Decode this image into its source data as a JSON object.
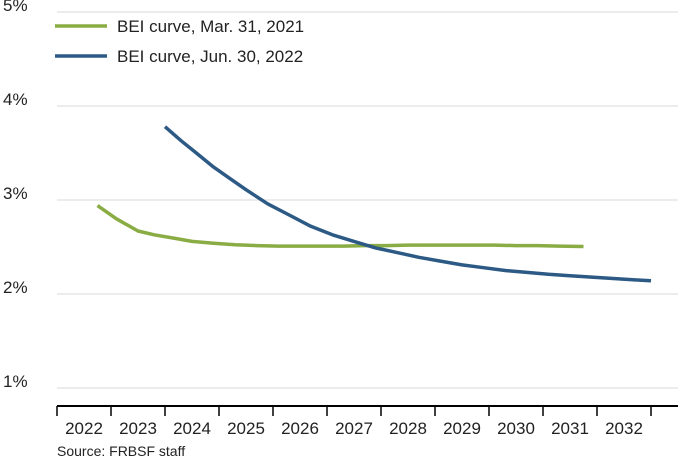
{
  "chart_data": {
    "type": "line",
    "ylim": [
      1,
      5
    ],
    "yticks": [
      1,
      2,
      3,
      4,
      5
    ],
    "ytick_labels": [
      "1%",
      "2%",
      "3%",
      "4%",
      "5%"
    ],
    "xlim": [
      2021.5,
      2033.0
    ],
    "xticks": [
      2022,
      2023,
      2024,
      2025,
      2026,
      2027,
      2028,
      2029,
      2030,
      2031,
      2032
    ],
    "xtick_labels": [
      "2022",
      "2023",
      "2024",
      "2025",
      "2026",
      "2027",
      "2028",
      "2029",
      "2030",
      "2031",
      "2032"
    ],
    "grid": "horizontal",
    "legend_position": "top-left",
    "series": [
      {
        "name": "BEI curve, Mar. 31, 2021",
        "color": "#8aac44",
        "x": [
          2022.25,
          2022.6,
          2023.0,
          2023.3,
          2023.7,
          2024.0,
          2024.4,
          2024.8,
          2025.2,
          2025.6,
          2026.0,
          2026.4,
          2026.8,
          2027.2,
          2027.6,
          2028.0,
          2028.4,
          2028.8,
          2029.2,
          2029.6,
          2030.0,
          2030.4,
          2030.8,
          2031.25
        ],
        "y": [
          2.94,
          2.8,
          2.67,
          2.63,
          2.59,
          2.56,
          2.54,
          2.525,
          2.515,
          2.51,
          2.51,
          2.51,
          2.51,
          2.515,
          2.515,
          2.52,
          2.52,
          2.52,
          2.52,
          2.52,
          2.515,
          2.515,
          2.51,
          2.505
        ]
      },
      {
        "name": "BEI curve, Jun. 30, 2022",
        "color": "#2c5a85",
        "x": [
          2023.5,
          2023.8,
          2024.1,
          2024.4,
          2024.7,
          2025.0,
          2025.4,
          2025.8,
          2026.2,
          2026.6,
          2027.0,
          2027.4,
          2027.8,
          2028.2,
          2028.6,
          2029.0,
          2029.4,
          2029.8,
          2030.2,
          2030.6,
          2031.0,
          2031.4,
          2031.8,
          2032.2,
          2032.5
        ],
        "y": [
          3.78,
          3.63,
          3.49,
          3.35,
          3.23,
          3.11,
          2.96,
          2.84,
          2.72,
          2.63,
          2.56,
          2.49,
          2.44,
          2.39,
          2.35,
          2.31,
          2.28,
          2.25,
          2.23,
          2.21,
          2.195,
          2.18,
          2.165,
          2.15,
          2.14
        ]
      }
    ],
    "source": "Source: FRBSF staff"
  }
}
